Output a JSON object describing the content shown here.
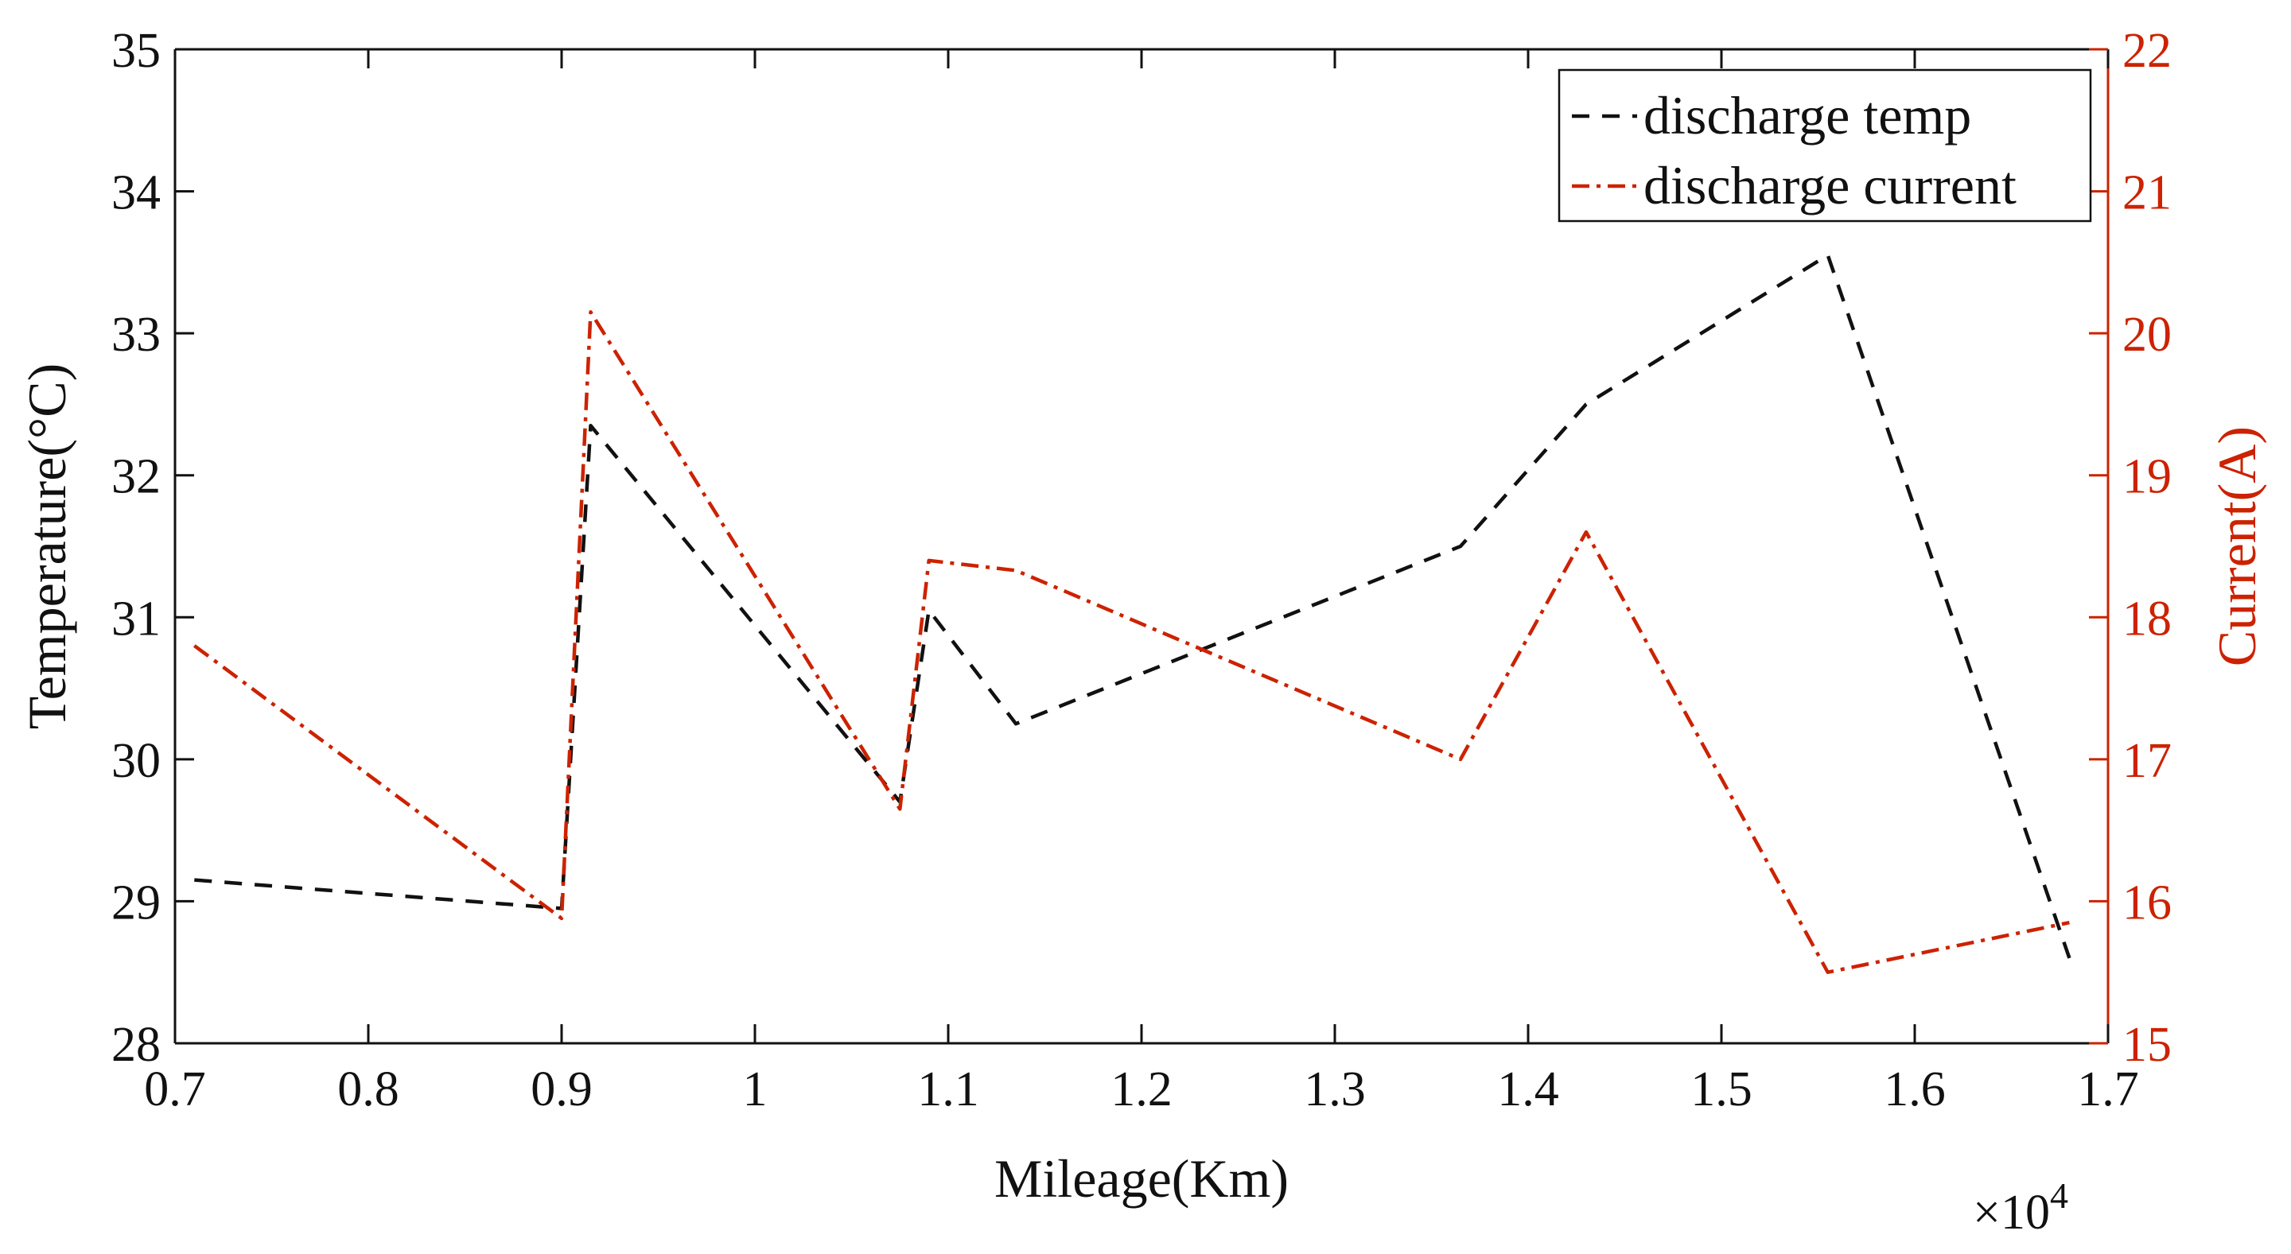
{
  "chart_data": {
    "type": "line",
    "title": "",
    "xlabel": "Mileage(Km)",
    "ylabel_left": "Temperature(°C)",
    "ylabel_right": "Current(A)",
    "x_exponent_label": "×10",
    "x_exponent_power": "4",
    "xlim": [
      0.7,
      1.7
    ],
    "ylim_left": [
      28,
      35
    ],
    "ylim_right": [
      15,
      22
    ],
    "x_ticks": [
      "0.7",
      "0.8",
      "0.9",
      "1",
      "1.1",
      "1.2",
      "1.3",
      "1.4",
      "1.5",
      "1.6",
      "1.7"
    ],
    "y_left_ticks": [
      "28",
      "29",
      "30",
      "31",
      "32",
      "33",
      "34",
      "35"
    ],
    "y_right_ticks": [
      "15",
      "16",
      "17",
      "18",
      "19",
      "20",
      "21",
      "22"
    ],
    "grid": false,
    "legend_position": "top-right",
    "colors": {
      "temp": "#111111",
      "current": "#cc2200",
      "axis": "#111111",
      "right_axis": "#cc2200"
    },
    "series": [
      {
        "name": "discharge temp",
        "axis": "left",
        "style": "dashed",
        "x": [
          0.71,
          0.9,
          0.915,
          1.075,
          1.09,
          1.135,
          1.365,
          1.43,
          1.555,
          1.68
        ],
        "values": [
          29.15,
          28.95,
          32.35,
          29.7,
          31.05,
          30.25,
          31.5,
          32.5,
          33.55,
          28.6
        ]
      },
      {
        "name": "discharge current",
        "axis": "right",
        "style": "dashdot",
        "x": [
          0.71,
          0.9,
          0.915,
          1.075,
          1.09,
          1.135,
          1.365,
          1.43,
          1.555,
          1.68
        ],
        "values": [
          17.8,
          15.88,
          20.15,
          16.65,
          18.4,
          18.33,
          17.0,
          18.6,
          15.5,
          15.85
        ]
      }
    ]
  }
}
